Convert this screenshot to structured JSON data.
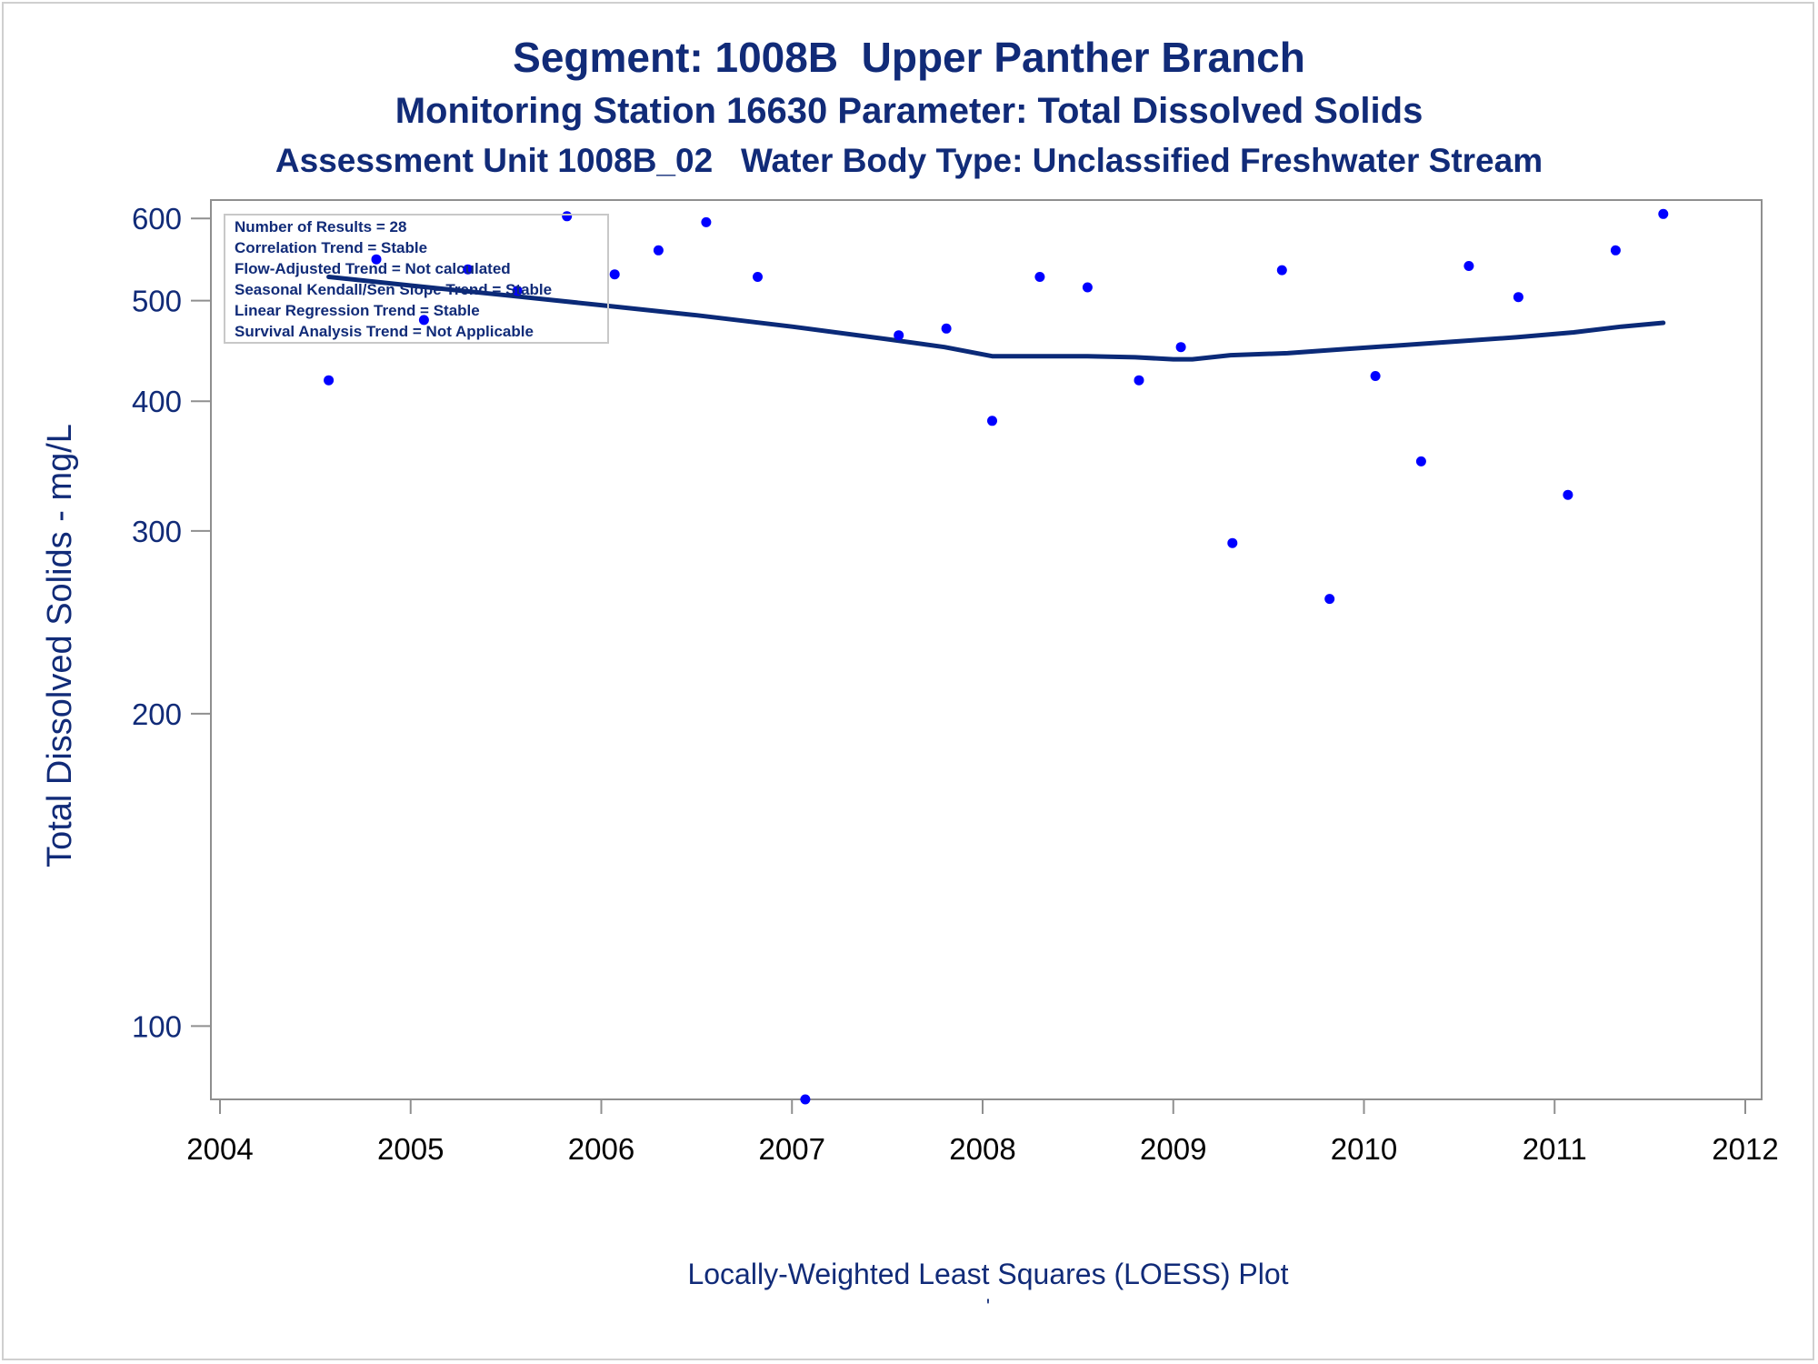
{
  "titles": {
    "line1": "Segment: 1008B  Upper Panther Branch",
    "line2": "Monitoring Station 16630 Parameter: Total Dissolved Solids",
    "line3": "Assessment Unit 1008B_02   Water Body Type: Unclassified Freshwater Stream"
  },
  "footnote": "Locally-Weighted Least Squares (LOESS) Plot",
  "footnote_mark": "'",
  "colors": {
    "text": "#112b78",
    "points": "#0000ff",
    "loess_line": "#0b2a78",
    "axis": "#8f8f8f",
    "background": "#ffffff"
  },
  "chart_data": {
    "type": "scatter",
    "title": "Segment: 1008B  Upper Panther Branch",
    "xlabel": "",
    "ylabel": "Total Dissolved Solids - mg/L",
    "yscale": "log",
    "xlim": [
      2004,
      2012
    ],
    "ylim": [
      85,
      625
    ],
    "xticks": [
      "2004",
      "2005",
      "2006",
      "2007",
      "2008",
      "2009",
      "2010",
      "2011",
      "2012"
    ],
    "yticks": [
      "100",
      "200",
      "300",
      "400",
      "500",
      "600"
    ],
    "grid": false,
    "stats_box": {
      "position": "top-left",
      "lines": [
        "Number of Results = 28",
        "Correlation Trend = Stable",
        "Flow-Adjusted Trend = Not calculated",
        "Seasonal Kendall/Sen Slope Trend = Stable",
        "Linear Regression Trend = Stable",
        "Survival Analysis Trend = Not Applicable"
      ]
    },
    "series": [
      {
        "type": "scatter",
        "x": [
          2004.57,
          2004.82,
          2005.07,
          2005.3,
          2005.56,
          2005.82,
          2006.07,
          2006.3,
          2006.55,
          2006.82,
          2007.07,
          2007.56,
          2007.81,
          2008.05,
          2008.3,
          2008.55,
          2008.82,
          2009.04,
          2009.31,
          2009.57,
          2009.82,
          2010.06,
          2010.3,
          2010.55,
          2010.81,
          2011.07,
          2011.32,
          2011.57
        ],
        "y": [
          419,
          548,
          479,
          536,
          511,
          603,
          530,
          559,
          595,
          527,
          85,
          463,
          470,
          383,
          527,
          515,
          419,
          451,
          292,
          535,
          258,
          423,
          350,
          540,
          504,
          325,
          559,
          606
        ]
      },
      {
        "type": "line",
        "x": [
          2004.57,
          2005.0,
          2005.5,
          2006.0,
          2006.5,
          2007.0,
          2007.5,
          2007.8,
          2008.05,
          2008.3,
          2008.55,
          2008.8,
          2009.0,
          2009.1,
          2009.3,
          2009.6,
          2009.9,
          2010.2,
          2010.5,
          2010.8,
          2011.1,
          2011.35,
          2011.57
        ],
        "y": [
          527,
          517,
          506,
          495,
          484,
          472,
          459,
          451,
          442,
          442,
          442,
          441,
          439,
          439,
          443,
          445,
          449,
          453,
          457,
          461,
          466,
          472,
          476
        ]
      }
    ]
  }
}
